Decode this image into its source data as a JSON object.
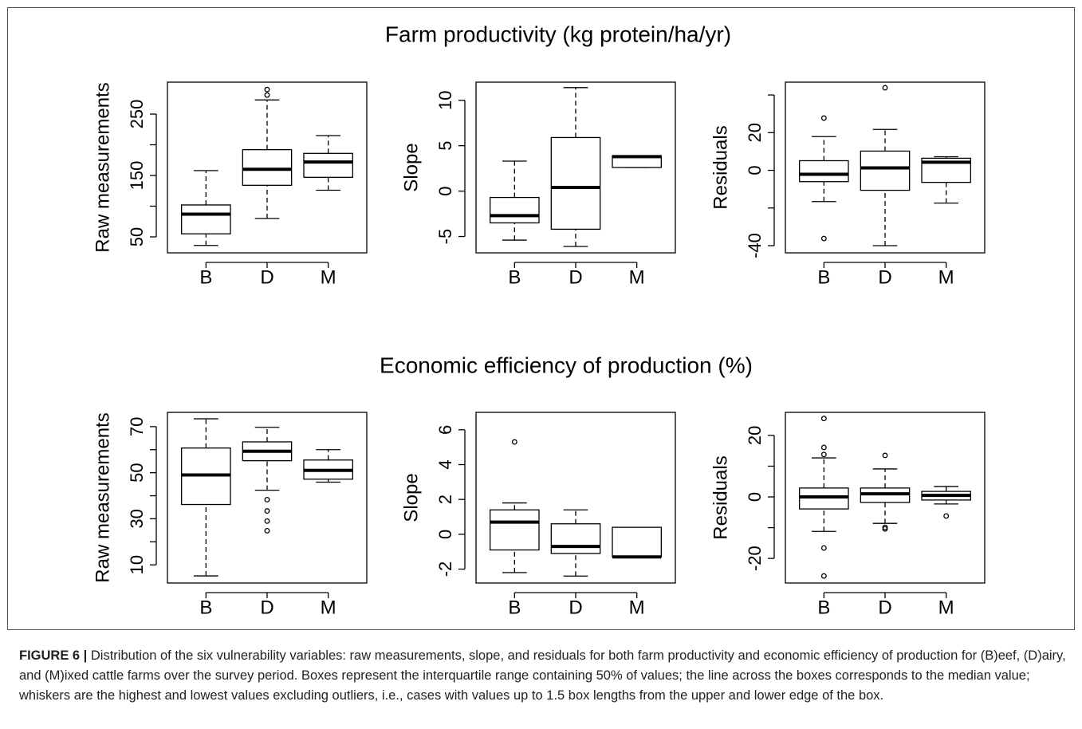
{
  "figure_titles": [
    "Farm productivity (kg protein/ha/yr)",
    "Economic efficiency of production (%)"
  ],
  "caption": {
    "label": "FIGURE 6 |",
    "text": "Distribution of the six vulnerability variables: raw measurements, slope, and residuals for both farm productivity and economic efficiency of production for (B)eef, (D)airy, and (M)ixed cattle farms over the survey period. Boxes represent the interquartile range containing 50% of values; the line across the boxes corresponds to the median value; whiskers are the highest and lowest values excluding outliers, i.e., cases with values up to 1.5 box lengths from the upper and lower edge of the box."
  },
  "chart_data": [
    {
      "type": "box",
      "ylabel": "Raw measurements",
      "categories": [
        "B",
        "D",
        "M"
      ],
      "whisker_low": [
        36,
        80,
        126
      ],
      "q1": [
        55,
        134,
        147
      ],
      "median": [
        87,
        160,
        172
      ],
      "q3": [
        102,
        192,
        186
      ],
      "whisker_high": [
        158,
        273,
        215
      ],
      "outliers": [
        [],
        [
          281,
          290
        ],
        []
      ],
      "ylim": [
        24,
        302
      ],
      "yticks": [
        50,
        {
          "value": 100,
          "label": null
        },
        150,
        {
          "value": 200,
          "label": null
        },
        250
      ]
    },
    {
      "type": "box",
      "ylabel": "Slope",
      "categories": [
        "B",
        "D",
        "M"
      ],
      "whisker_low": [
        -5.4,
        -6.1,
        2.6
      ],
      "q1": [
        -3.5,
        -4.2,
        2.6
      ],
      "median": [
        -2.7,
        0.4,
        3.8
      ],
      "q3": [
        -0.7,
        5.9,
        3.9
      ],
      "whisker_high": [
        3.3,
        11.4,
        3.9
      ],
      "outliers": [
        [],
        [],
        []
      ],
      "ylim": [
        -6.8,
        12
      ],
      "yticks": [
        -5,
        0,
        5,
        10
      ]
    },
    {
      "type": "box",
      "ylabel": "Residuals",
      "categories": [
        "B",
        "D",
        "M"
      ],
      "whisker_low": [
        -16.6,
        -40,
        -17.4
      ],
      "q1": [
        -6,
        -10.6,
        -6.4
      ],
      "median": [
        -2.1,
        1.3,
        4.3
      ],
      "q3": [
        5.1,
        10.2,
        6.4
      ],
      "whisker_high": [
        17.9,
        21.7,
        7.2
      ],
      "outliers": [
        [
          27.7,
          -36.2
        ],
        [
          43.8
        ],
        []
      ],
      "ylim": [
        -43.8,
        46.8
      ],
      "yticks": [
        -40,
        {
          "value": -20,
          "label": null
        },
        0,
        20,
        {
          "value": 40,
          "label": null
        }
      ]
    },
    {
      "type": "box",
      "ylabel": "Raw measurements",
      "categories": [
        "B",
        "D",
        "M"
      ],
      "whisker_low": [
        5.2,
        42.4,
        45.9
      ],
      "q1": [
        36.2,
        55.2,
        47.2
      ],
      "median": [
        49,
        59.3,
        51
      ],
      "q3": [
        60.7,
        63.4,
        55.5
      ],
      "whisker_high": [
        73.4,
        69.7,
        60
      ],
      "outliers": [
        [],
        [
          38.3,
          33.4,
          29,
          24.8
        ],
        []
      ],
      "ylim": [
        2.1,
        76.2
      ],
      "yticks": [
        10,
        {
          "value": 20,
          "label": null
        },
        30,
        {
          "value": 40,
          "label": null
        },
        50,
        {
          "value": 60,
          "label": null
        },
        70
      ]
    },
    {
      "type": "box",
      "ylabel": "Slope",
      "categories": [
        "B",
        "D",
        "M"
      ],
      "whisker_low": [
        -2.2,
        -2.4,
        -1.3
      ],
      "q1": [
        -0.9,
        -1.1,
        -1.3
      ],
      "median": [
        0.7,
        -0.7,
        -1.3
      ],
      "q3": [
        1.4,
        0.6,
        0.4
      ],
      "whisker_high": [
        1.8,
        1.4,
        0.4
      ],
      "outliers": [
        [
          5.3
        ],
        [],
        []
      ],
      "ylim": [
        -2.8,
        7
      ],
      "yticks": [
        -2,
        0,
        2,
        4,
        6
      ]
    },
    {
      "type": "box",
      "ylabel": "Residuals",
      "categories": [
        "B",
        "D",
        "M"
      ],
      "whisker_low": [
        -11.2,
        -8.6,
        -2.3
      ],
      "q1": [
        -3.9,
        -1.8,
        -1
      ],
      "median": [
        0,
        1,
        0.5
      ],
      "q3": [
        2.9,
        2.9,
        1.8
      ],
      "whisker_high": [
        12.7,
        9.1,
        3.4
      ],
      "outliers": [
        [
          25.5,
          16.1,
          13.8,
          -16.6,
          -25.7
        ],
        [
          13.5,
          -9.9,
          -10.4
        ],
        [
          -6.2
        ]
      ],
      "ylim": [
        -28,
        27.5
      ],
      "yticks": [
        -20,
        {
          "value": -10,
          "label": null
        },
        0,
        {
          "value": 10,
          "label": null
        },
        20
      ]
    }
  ]
}
